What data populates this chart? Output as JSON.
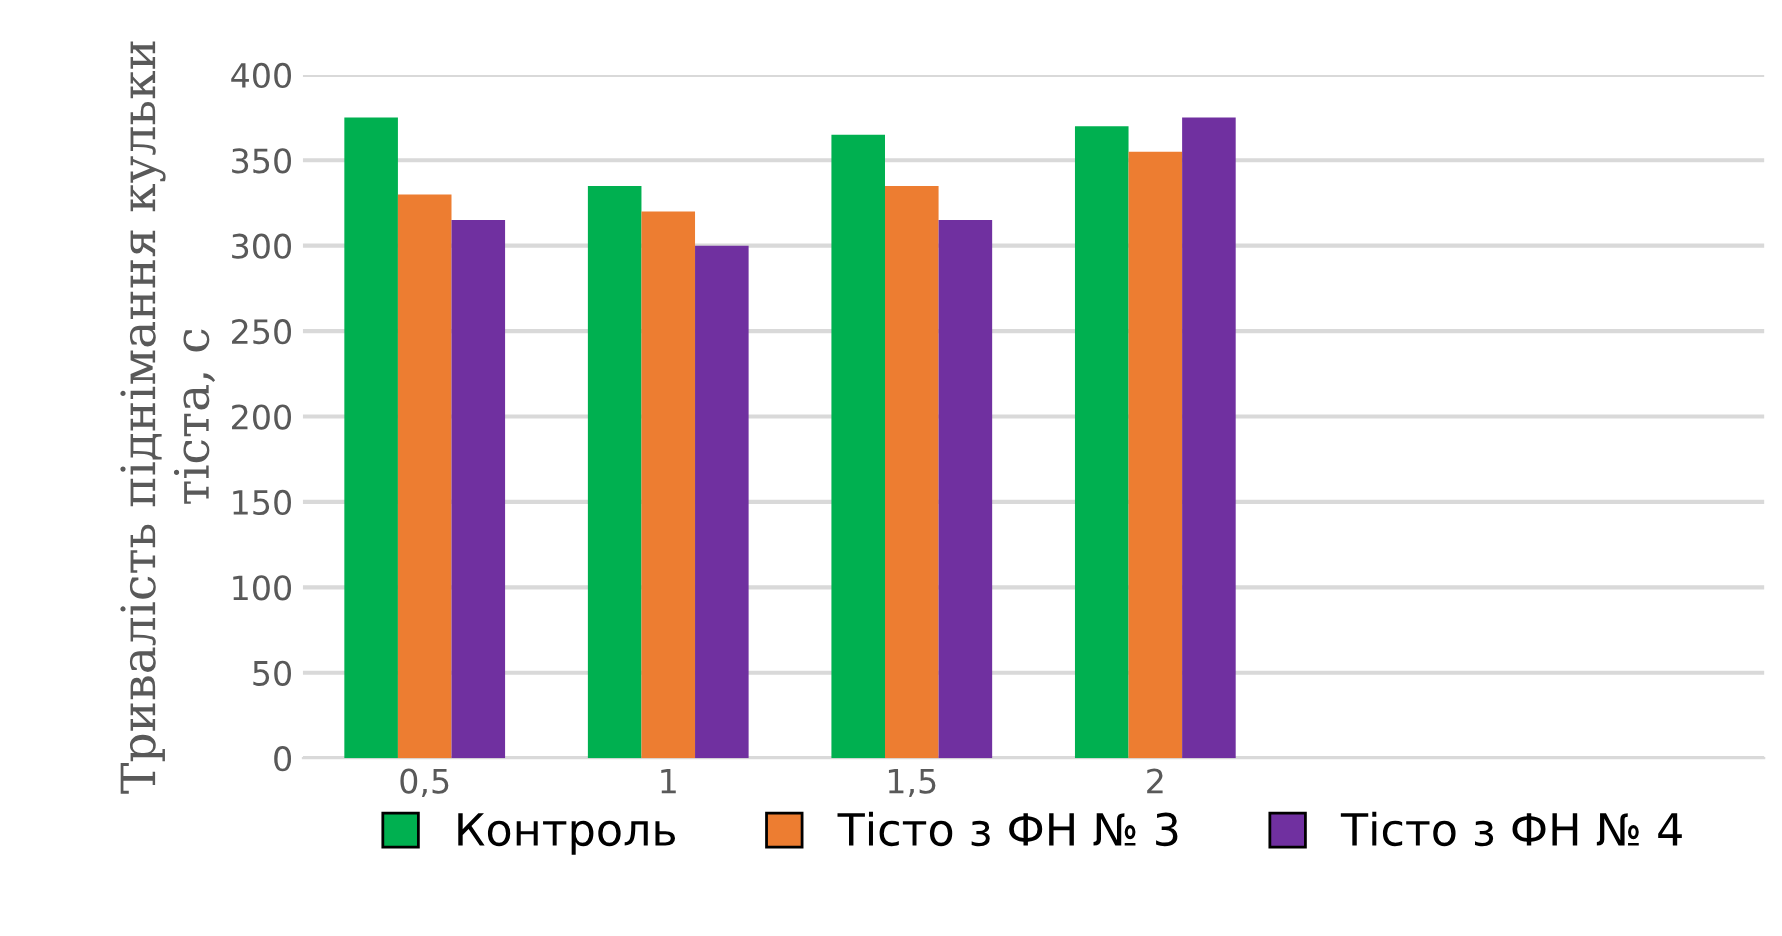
{
  "chart_data": {
    "type": "bar",
    "ylabel": "Тривалість піднімання кульки тіста, с",
    "categories": [
      "0,5",
      "1",
      "1,5",
      "2",
      null,
      null
    ],
    "series": [
      {
        "name": "Контроль",
        "color": "#00b050",
        "values": [
          375,
          335,
          365,
          370,
          null,
          null
        ]
      },
      {
        "name": "Тісто з ФН № 3",
        "color": "#ed7d31",
        "values": [
          330,
          320,
          335,
          355,
          null,
          null
        ]
      },
      {
        "name": "Тісто з ФН № 4",
        "color": "#7030a0",
        "values": [
          315,
          300,
          315,
          375,
          null,
          null
        ]
      }
    ],
    "ylim": [
      0,
      400
    ],
    "yticks": [
      0,
      50,
      100,
      150,
      200,
      250,
      300,
      350,
      400
    ],
    "grid": "y",
    "legend": "bottom"
  }
}
